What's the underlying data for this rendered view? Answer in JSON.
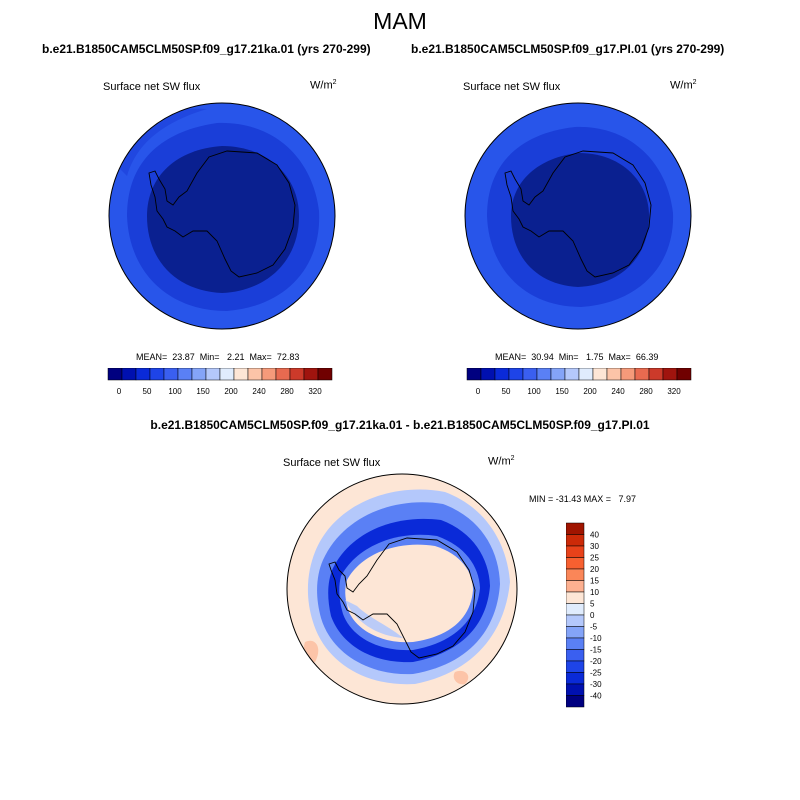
{
  "page": {
    "season": "MAM",
    "diff_title": "b.e21.B1850CAM5CLM50SP.f09_g17.21ka.01 - b.e21.B1850CAM5CLM50SP.f09_g17.PI.01"
  },
  "panels": [
    {
      "case_title": "b.e21.B1850CAM5CLM50SP.f09_g17.21ka.01 (yrs 270-299)",
      "field": "Surface net SW flux",
      "units": "W/m",
      "units_sup": "2",
      "stats": {
        "mean": "23.87",
        "min": "2.21",
        "max": "72.83"
      },
      "stats_text": "MEAN=  23.87  Min=   2.21  Max=  72.83"
    },
    {
      "case_title": "b.e21.B1850CAM5CLM50SP.f09_g17.PI.01 (yrs 270-299)",
      "field": "Surface net SW flux",
      "units": "W/m",
      "units_sup": "2",
      "stats": {
        "mean": "30.94",
        "min": "1.75",
        "max": "66.39"
      },
      "stats_text": "MEAN=  30.94  Min=   1.75  Max=  66.39"
    }
  ],
  "diff_panel": {
    "field": "Surface net SW flux",
    "units": "W/m",
    "units_sup": "2",
    "min": "-31.43",
    "max": "7.97",
    "stats_text": "MIN = -31.43 MAX =   7.97"
  },
  "colorbar_abs": {
    "labels": [
      "0",
      "50",
      "100",
      "150",
      "200",
      "240",
      "280",
      "320"
    ],
    "colors": [
      "#000080",
      "#0010b0",
      "#0a2ad8",
      "#1e44e8",
      "#3a5ff0",
      "#5a80f5",
      "#84a4f8",
      "#b4c8fb",
      "#e0ecfd",
      "#fde6d6",
      "#fcc4a8",
      "#f59a7a",
      "#e86a50",
      "#cc3a2a",
      "#a0140e",
      "#700000"
    ]
  },
  "colorbar_diff": {
    "labels": [
      "40",
      "30",
      "25",
      "20",
      "15",
      "10",
      "5",
      "0",
      "-5",
      "-10",
      "-15",
      "-20",
      "-25",
      "-30",
      "-40"
    ],
    "colors": [
      "#a01400",
      "#cc2a08",
      "#e8421a",
      "#f76030",
      "#fa8658",
      "#fdb090",
      "#fde6d6",
      "#e0ecfd",
      "#b4c8fb",
      "#84a4f8",
      "#5a80f5",
      "#3a5ff0",
      "#1e44e8",
      "#0a2ad8",
      "#0010b0",
      "#000080"
    ]
  },
  "map_colors": {
    "abs_deep": "#0a2090",
    "abs_mid": "#1a3ed8",
    "abs_edge": "#2855ea",
    "diff_ocean": "#fde6d6",
    "diff_light_blue": "#b4c8fb",
    "diff_mid_blue": "#5a80f5",
    "diff_deep_blue": "#0a2ad8"
  }
}
